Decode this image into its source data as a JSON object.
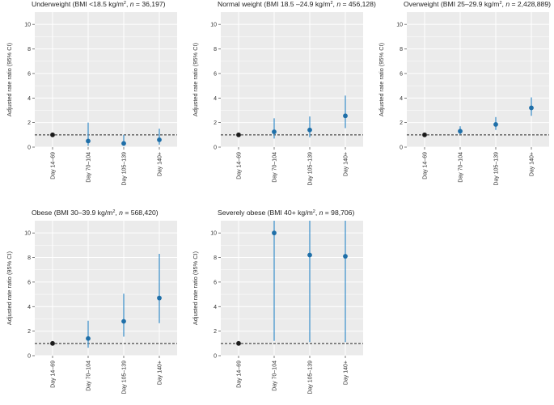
{
  "chart_data": [
    {
      "type": "scatter",
      "title": {
        "pre": "Underweight (BMI <18.5 kg/m",
        "sup": "2",
        "mid": ", ",
        "n": "n",
        "post": " = 36,197)"
      },
      "ylabel": "Adjusted rate ratio (95% CI)",
      "categories": [
        "Day 14–69",
        "Day 70–104",
        "Day 105–139",
        "Day 140+"
      ],
      "ylim": [
        0,
        11
      ],
      "yticks": [
        0,
        2,
        4,
        6,
        8,
        10
      ],
      "reference_line": 1,
      "points": [
        {
          "estimate": 1.0,
          "lower": 1.0,
          "upper": 1.0,
          "reference": true
        },
        {
          "estimate": 0.5,
          "lower": 0.1,
          "upper": 2.0
        },
        {
          "estimate": 0.3,
          "lower": 0.1,
          "upper": 1.0
        },
        {
          "estimate": 0.6,
          "lower": 0.2,
          "upper": 1.5
        }
      ]
    },
    {
      "type": "scatter",
      "title": {
        "pre": "Normal weight (BMI 18.5 –24.9 kg/m",
        "sup": "2",
        "mid": ", ",
        "n": "n",
        "post": " = 456,128)"
      },
      "ylabel": "Adjusted rate ratio (95% CI)",
      "categories": [
        "Day 14–69",
        "Day 70–104",
        "Day 105–139",
        "Day 140+"
      ],
      "ylim": [
        0,
        11
      ],
      "yticks": [
        0,
        2,
        4,
        6,
        8,
        10
      ],
      "reference_line": 1,
      "points": [
        {
          "estimate": 1.0,
          "lower": 1.0,
          "upper": 1.0,
          "reference": true
        },
        {
          "estimate": 1.25,
          "lower": 0.7,
          "upper": 2.35
        },
        {
          "estimate": 1.4,
          "lower": 0.8,
          "upper": 2.5
        },
        {
          "estimate": 2.55,
          "lower": 1.55,
          "upper": 4.2
        }
      ]
    },
    {
      "type": "scatter",
      "title": {
        "pre": "Overweight (BMI 25–29.9 kg/m",
        "sup": "2",
        "mid": ", ",
        "n": "n",
        "post": " = 2,428,889)"
      },
      "ylabel": "Adjusted rate ratio (95% CI)",
      "categories": [
        "Day 14–69",
        "Day 70–104",
        "Day 105–139",
        "Day 140+"
      ],
      "ylim": [
        0,
        11
      ],
      "yticks": [
        0,
        2,
        4,
        6,
        8,
        10
      ],
      "reference_line": 1,
      "points": [
        {
          "estimate": 1.0,
          "lower": 1.0,
          "upper": 1.0,
          "reference": true
        },
        {
          "estimate": 1.3,
          "lower": 1.05,
          "upper": 1.7
        },
        {
          "estimate": 1.85,
          "lower": 1.4,
          "upper": 2.45
        },
        {
          "estimate": 3.2,
          "lower": 2.55,
          "upper": 4.05
        }
      ]
    },
    {
      "type": "scatter",
      "title": {
        "pre": "Obese (BMI 30–39.9 kg/m",
        "sup": "2",
        "mid": ", ",
        "n": "n",
        "post": " = 568,420)"
      },
      "ylabel": "Adjusted rate ratio (95% CI)",
      "categories": [
        "Day 14–69",
        "Day 70–104",
        "Day 105–139",
        "Day 140+"
      ],
      "ylim": [
        0,
        11
      ],
      "yticks": [
        0,
        2,
        4,
        6,
        8,
        10
      ],
      "reference_line": 1,
      "points": [
        {
          "estimate": 1.0,
          "lower": 1.0,
          "upper": 1.0,
          "reference": true
        },
        {
          "estimate": 1.4,
          "lower": 0.65,
          "upper": 2.85
        },
        {
          "estimate": 2.8,
          "lower": 1.55,
          "upper": 5.05
        },
        {
          "estimate": 4.7,
          "lower": 2.65,
          "upper": 8.3
        }
      ]
    },
    {
      "type": "scatter",
      "title": {
        "pre": "Severely obese (BMI 40+ kg/m",
        "sup": "2",
        "mid": ", ",
        "n": "n",
        "post": " = 98,706)"
      },
      "ylabel": "Adjusted rate ratio (95% CI)",
      "categories": [
        "Day 14–69",
        "Day 70–104",
        "Day 105–139",
        "Day 140+"
      ],
      "ylim": [
        0,
        11
      ],
      "yticks": [
        0,
        2,
        4,
        6,
        8,
        10
      ],
      "reference_line": 1,
      "points": [
        {
          "estimate": 1.0,
          "lower": 1.0,
          "upper": 1.0,
          "reference": true
        },
        {
          "estimate": 10.0,
          "lower": 1.2,
          "upper": 11.0
        },
        {
          "estimate": 8.2,
          "lower": 1.1,
          "upper": 11.0
        },
        {
          "estimate": 8.1,
          "lower": 1.1,
          "upper": 11.0
        }
      ]
    }
  ],
  "colors": {
    "panel_bg": "#ebebeb",
    "grid": "#ffffff",
    "reference_point": "#1a1a1a",
    "estimate": "#1f6fa8",
    "ci_line": "#3a8fcc",
    "reference_line": "#222222"
  }
}
